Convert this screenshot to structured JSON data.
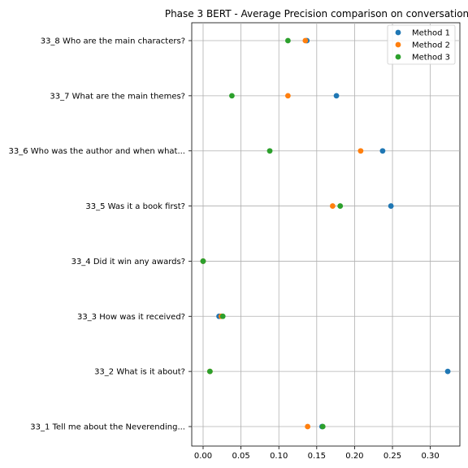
{
  "chart_data": {
    "type": "scatter",
    "title": "Phase 3 BERT - Average Precision comparison on conversation",
    "xlabel": "",
    "ylabel": "",
    "xlim": [
      -0.015,
      0.339
    ],
    "xticks": [
      "0.00",
      "0.05",
      "0.10",
      "0.15",
      "0.20",
      "0.25",
      "0.30"
    ],
    "categories": [
      "33_8 Who are the main characters?",
      "33_7 What are the main themes?",
      "33_6 Who was the author and when what...",
      "33_5 Was it a book first?",
      "33_4 Did it win any awards?",
      "33_3 How was it received?",
      "33_2 What is it about?",
      "33_1 Tell me about the Neverending..."
    ],
    "series": [
      {
        "name": "Method 1",
        "color": "#1f77b4",
        "values": [
          0.137,
          0.176,
          0.237,
          0.248,
          0.0,
          0.021,
          0.323,
          0.157
        ]
      },
      {
        "name": "Method 2",
        "color": "#ff7f0e",
        "values": [
          0.135,
          0.112,
          0.208,
          0.171,
          0.0,
          0.024,
          0.009,
          0.138
        ]
      },
      {
        "name": "Method 3",
        "color": "#2ca02c",
        "values": [
          0.112,
          0.038,
          0.088,
          0.181,
          0.0,
          0.026,
          0.009,
          0.158
        ]
      }
    ],
    "grid": true,
    "legend_position": "top-right"
  }
}
